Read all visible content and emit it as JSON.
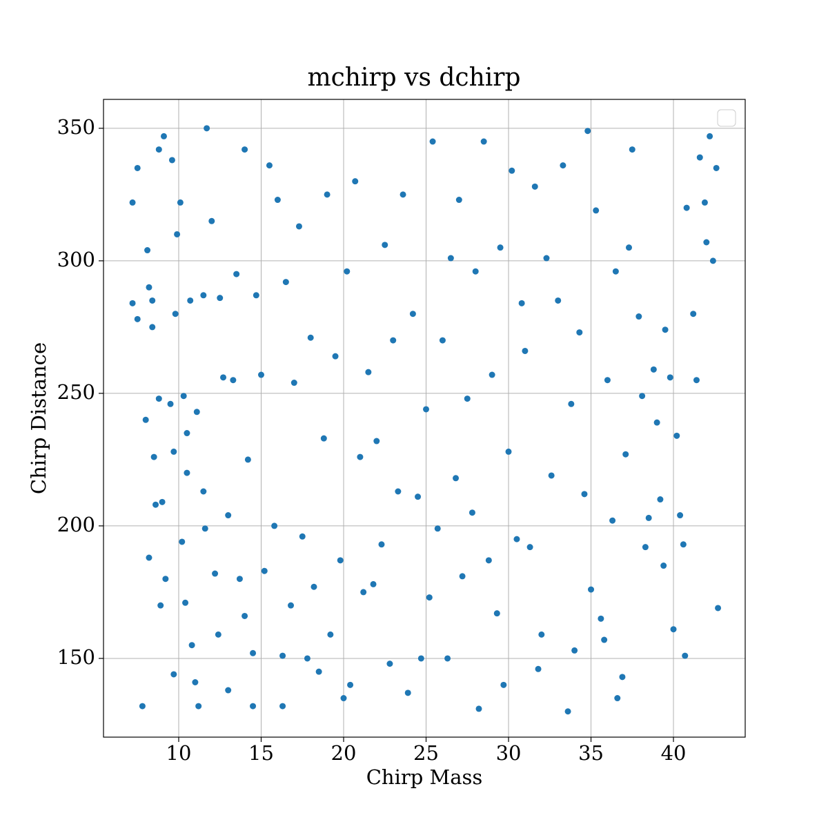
{
  "chart_data": {
    "type": "scatter",
    "title": "mchirp vs dchirp",
    "x_label": "Chirp Mass",
    "y_label": "Chirp Distance",
    "color": "#1f77b4",
    "grid": true,
    "legend": "upper right",
    "xlim": [
      5.44,
      44.35
    ],
    "ylim": [
      120.3,
      360.9
    ],
    "xticks": [
      10,
      15,
      20,
      25,
      30,
      35,
      40
    ],
    "yticks": [
      150,
      200,
      250,
      300,
      350
    ],
    "x": [
      7.2,
      7.2,
      7.5,
      7.5,
      7.8,
      8.0,
      8.1,
      8.2,
      8.2,
      8.4,
      8.4,
      8.5,
      8.6,
      8.8,
      8.8,
      8.9,
      9.0,
      9.1,
      9.2,
      9.5,
      9.6,
      9.7,
      9.7,
      9.8,
      9.9,
      10.1,
      10.2,
      10.3,
      10.4,
      10.5,
      10.5,
      10.7,
      10.8,
      11.0,
      11.1,
      11.2,
      11.5,
      11.5,
      11.6,
      11.7,
      12.0,
      12.2,
      12.4,
      12.5,
      12.7,
      13.0,
      13.0,
      13.3,
      13.5,
      13.7,
      14.0,
      14.0,
      14.2,
      14.5,
      14.5,
      14.7,
      15.0,
      15.2,
      15.5,
      15.8,
      16.0,
      16.3,
      16.3,
      16.5,
      16.8,
      17.0,
      17.3,
      17.5,
      17.8,
      18.0,
      18.2,
      18.5,
      18.8,
      19.0,
      19.2,
      19.5,
      19.8,
      20.0,
      20.2,
      20.4,
      20.7,
      21.0,
      21.2,
      21.5,
      21.8,
      22.0,
      22.3,
      22.5,
      22.8,
      23.0,
      23.3,
      23.6,
      23.9,
      24.2,
      24.5,
      24.7,
      25.0,
      25.2,
      25.4,
      25.7,
      26.0,
      26.3,
      26.5,
      26.8,
      27.0,
      27.2,
      27.5,
      27.8,
      28.0,
      28.2,
      28.5,
      28.8,
      29.0,
      29.3,
      29.5,
      29.7,
      30.0,
      30.2,
      30.5,
      30.8,
      31.0,
      31.3,
      31.6,
      31.8,
      32.0,
      32.3,
      32.6,
      33.0,
      33.3,
      33.6,
      33.8,
      34.0,
      34.3,
      34.6,
      34.8,
      35.0,
      35.3,
      35.6,
      35.8,
      36.0,
      36.3,
      36.5,
      36.6,
      36.9,
      37.1,
      37.3,
      37.5,
      37.9,
      38.1,
      38.3,
      38.5,
      38.8,
      39.0,
      39.2,
      39.4,
      39.5,
      39.8,
      40.0,
      40.2,
      40.4,
      40.6,
      40.7,
      40.8,
      41.2,
      41.4,
      41.6,
      41.9,
      42.0,
      42.2,
      42.4,
      42.6,
      42.7
    ],
    "values": [
      322,
      284,
      335,
      278,
      132,
      240,
      304,
      188,
      290,
      275,
      285,
      226,
      208,
      342,
      248,
      170,
      209,
      347,
      180,
      246,
      338,
      144,
      228,
      280,
      310,
      322,
      194,
      249,
      171,
      235,
      220,
      285,
      155,
      141,
      243,
      132,
      287,
      213,
      199,
      350,
      315,
      182,
      159,
      286,
      256,
      138,
      204,
      255,
      295,
      180,
      342,
      166,
      225,
      132,
      152,
      287,
      257,
      183,
      336,
      200,
      323,
      132,
      151,
      292,
      170,
      254,
      313,
      196,
      150,
      271,
      177,
      145,
      233,
      325,
      159,
      264,
      187,
      135,
      296,
      140,
      330,
      226,
      175,
      258,
      178,
      232,
      193,
      306,
      148,
      270,
      213,
      325,
      137,
      280,
      211,
      150,
      244,
      173,
      345,
      199,
      270,
      150,
      301,
      218,
      323,
      181,
      248,
      205,
      296,
      131,
      345,
      187,
      257,
      167,
      305,
      140,
      228,
      334,
      195,
      284,
      266,
      192,
      328,
      146,
      159,
      301,
      219,
      285,
      336,
      130,
      246,
      153,
      273,
      212,
      349,
      176,
      319,
      165,
      157,
      255,
      202,
      296,
      135,
      143,
      227,
      305,
      342,
      279,
      249,
      192,
      203,
      259,
      239,
      210,
      185,
      274,
      256,
      161,
      234,
      204,
      193,
      151,
      320,
      280,
      255,
      339,
      322,
      307,
      347,
      300,
      335,
      169
    ]
  }
}
